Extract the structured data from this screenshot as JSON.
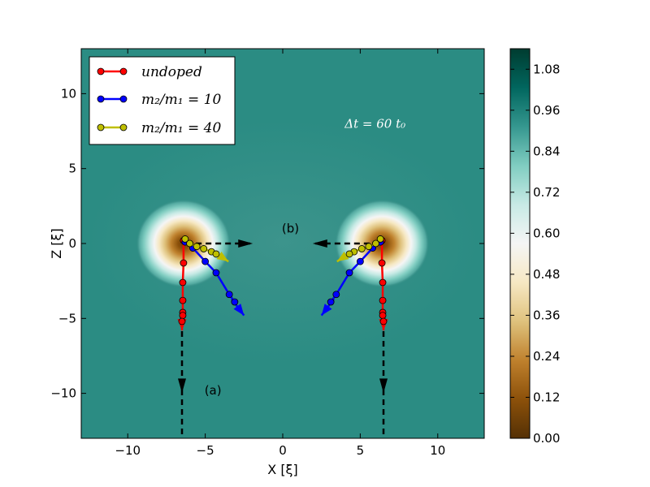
{
  "chart_data": {
    "type": "line",
    "title": "",
    "xlabel": "X [ξ]",
    "ylabel": "Z [ξ]",
    "xlim": [
      -13,
      13
    ],
    "ylim": [
      -13,
      13
    ],
    "xticks": [
      -10,
      -5,
      0,
      5,
      10
    ],
    "yticks": [
      -10,
      -5,
      0,
      5,
      10
    ],
    "xtick_labels": [
      "−10",
      "−5",
      "0",
      "5",
      "10"
    ],
    "ytick_labels": [
      "−10",
      "−5",
      "0",
      "5",
      "10"
    ],
    "grid": false,
    "legend_position": "top-left",
    "annotation_dt": "Δt = 60 t₀",
    "label_a": "(a)",
    "label_b": "(b)",
    "background_field": {
      "description": "density colormap",
      "vortex_centers": [
        [
          -6.4,
          0
        ],
        [
          6.4,
          0
        ]
      ],
      "far_field_value": 1.0,
      "core_value": 0.0
    },
    "colorbar": {
      "min": 0.0,
      "max": 1.14,
      "ticks": [
        0.0,
        0.12,
        0.24,
        0.36,
        0.48,
        0.6,
        0.72,
        0.84,
        0.96,
        1.08
      ],
      "tick_labels": [
        "0.00",
        "0.12",
        "0.24",
        "0.36",
        "0.48",
        "0.60",
        "0.72",
        "0.84",
        "0.96",
        "1.08"
      ],
      "colors": [
        "#543005",
        "#8c510a",
        "#bf812d",
        "#dfc27d",
        "#f6e8c3",
        "#f5f5f5",
        "#c7eae5",
        "#80cdc1",
        "#35978f",
        "#01665e",
        "#003c30"
      ]
    },
    "series": [
      {
        "name": "undoped",
        "color": "#ff0000",
        "left": [
          [
            -6.4,
            0.2
          ],
          [
            -6.4,
            -1.3
          ],
          [
            -6.45,
            -2.6
          ],
          [
            -6.45,
            -3.8
          ],
          [
            -6.45,
            -4.6
          ],
          [
            -6.45,
            -4.8
          ],
          [
            -6.5,
            -5.2
          ]
        ],
        "right": [
          [
            6.4,
            0.2
          ],
          [
            6.4,
            -1.3
          ],
          [
            6.45,
            -2.6
          ],
          [
            6.45,
            -3.8
          ],
          [
            6.45,
            -4.6
          ],
          [
            6.45,
            -4.8
          ],
          [
            6.5,
            -5.2
          ]
        ],
        "arrow_left": [
          [
            -6.5,
            -4.9
          ],
          [
            -6.5,
            -5.8
          ]
        ],
        "arrow_right": [
          [
            6.5,
            -4.9
          ],
          [
            6.5,
            -5.8
          ]
        ]
      },
      {
        "name": "m₂/m₁ = 10",
        "color": "#0000ff",
        "left": [
          [
            -6.3,
            0.1
          ],
          [
            -5.8,
            -0.3
          ],
          [
            -5.0,
            -1.2
          ],
          [
            -4.3,
            -1.95
          ],
          [
            -3.45,
            -3.4
          ],
          [
            -3.1,
            -3.9
          ]
        ],
        "right": [
          [
            6.3,
            0.1
          ],
          [
            5.8,
            -0.3
          ],
          [
            5.0,
            -1.2
          ],
          [
            4.3,
            -1.95
          ],
          [
            3.45,
            -3.4
          ],
          [
            3.1,
            -3.9
          ]
        ],
        "arrow_left": [
          [
            -3.3,
            -3.7
          ],
          [
            -2.5,
            -4.8
          ]
        ],
        "arrow_right": [
          [
            3.3,
            -3.7
          ],
          [
            2.5,
            -4.8
          ]
        ]
      },
      {
        "name": "m₂/m₁ = 40",
        "color": "#bfbf00",
        "left": [
          [
            -6.3,
            0.3
          ],
          [
            -6.0,
            0.0
          ],
          [
            -5.55,
            -0.2
          ],
          [
            -5.1,
            -0.35
          ],
          [
            -4.6,
            -0.55
          ],
          [
            -4.3,
            -0.7
          ]
        ],
        "right": [
          [
            6.3,
            0.3
          ],
          [
            6.0,
            0.0
          ],
          [
            5.55,
            -0.2
          ],
          [
            5.1,
            -0.35
          ],
          [
            4.6,
            -0.55
          ],
          [
            4.3,
            -0.7
          ]
        ],
        "arrow_left": [
          [
            -4.4,
            -0.6
          ],
          [
            -3.5,
            -1.2
          ]
        ],
        "arrow_right": [
          [
            4.4,
            -0.6
          ],
          [
            3.5,
            -1.2
          ]
        ]
      }
    ],
    "dashed_paths": [
      {
        "name": "path-a-left",
        "points": [
          [
            -6.5,
            -5.2
          ],
          [
            -6.5,
            -13
          ]
        ],
        "arrow_at": [
          -6.5,
          -9.5
        ],
        "direction": "down"
      },
      {
        "name": "path-a-right",
        "points": [
          [
            6.5,
            -5.2
          ],
          [
            6.5,
            -13
          ]
        ],
        "arrow_at": [
          6.5,
          -9.5
        ],
        "direction": "down"
      },
      {
        "name": "path-b-left",
        "points": [
          [
            -5.6,
            0.0
          ],
          [
            -2.1,
            0.0
          ]
        ],
        "arrow_at": [
          -2.4,
          0.0
        ],
        "direction": "right"
      },
      {
        "name": "path-b-right",
        "points": [
          [
            5.6,
            0.0
          ],
          [
            2.1,
            0.0
          ]
        ],
        "arrow_at": [
          2.4,
          0.0
        ],
        "direction": "left"
      }
    ]
  }
}
